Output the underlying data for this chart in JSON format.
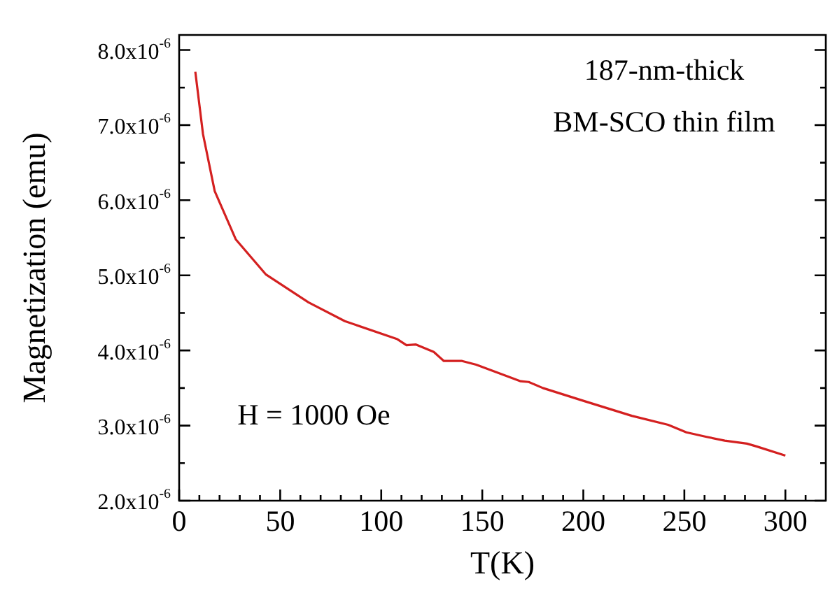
{
  "chart_data": {
    "type": "line",
    "xlabel": "T(K)",
    "ylabel": "Magnetization (emu)",
    "annotations": [
      "187-nm-thick",
      "BM-SCO thin film",
      "H = 1000 Oe"
    ],
    "x": [
      8,
      11.8,
      17.6,
      28,
      43,
      64,
      82,
      108,
      112.5,
      117,
      126,
      131,
      140,
      147,
      163,
      169,
      173,
      180,
      200,
      224,
      242,
      251,
      261,
      270,
      281,
      286,
      300
    ],
    "series": [
      {
        "color": "#d42020",
        "values": [
          7.71e-06,
          6.88e-06,
          6.12e-06,
          5.48e-06,
          5.01e-06,
          4.64e-06,
          4.39e-06,
          4.15e-06,
          4.07e-06,
          4.08e-06,
          3.98e-06,
          3.86e-06,
          3.86e-06,
          3.81e-06,
          3.65e-06,
          3.59e-06,
          3.58e-06,
          3.5e-06,
          3.33e-06,
          3.13e-06,
          3.01e-06,
          2.91e-06,
          2.85e-06,
          2.8e-06,
          2.76e-06,
          2.72e-06,
          2.6e-06
        ]
      }
    ],
    "xlim": [
      0,
      320
    ],
    "ylim": [
      2e-06,
      8.2e-06
    ],
    "xticks": [
      0,
      {
        "value": 10,
        "label": null
      },
      {
        "value": 20,
        "label": null
      },
      {
        "value": 30,
        "label": null
      },
      {
        "value": 40,
        "label": null
      },
      50,
      {
        "value": 60,
        "label": null
      },
      {
        "value": 70,
        "label": null
      },
      {
        "value": 80,
        "label": null
      },
      {
        "value": 90,
        "label": null
      },
      100,
      {
        "value": 110,
        "label": null
      },
      {
        "value": 120,
        "label": null
      },
      {
        "value": 130,
        "label": null
      },
      {
        "value": 140,
        "label": null
      },
      150,
      {
        "value": 160,
        "label": null
      },
      {
        "value": 170,
        "label": null
      },
      {
        "value": 180,
        "label": null
      },
      {
        "value": 190,
        "label": null
      },
      200,
      {
        "value": 210,
        "label": null
      },
      {
        "value": 220,
        "label": null
      },
      {
        "value": 230,
        "label": null
      },
      {
        "value": 240,
        "label": null
      },
      250,
      {
        "value": 260,
        "label": null
      },
      {
        "value": 270,
        "label": null
      },
      {
        "value": 280,
        "label": null
      },
      {
        "value": 290,
        "label": null
      },
      300,
      {
        "value": 310,
        "label": null
      }
    ],
    "yticks": [
      {
        "value": 2e-06,
        "label": "2.0x10$^{-6}$"
      },
      {
        "value": 2.5e-06,
        "label": null
      },
      {
        "value": 3e-06,
        "label": "3.0x10$^{-6}$"
      },
      {
        "value": 3.5e-06,
        "label": null
      },
      {
        "value": 4e-06,
        "label": "4.0x10$^{-6}$"
      },
      {
        "value": 4.5e-06,
        "label": null
      },
      {
        "value": 5e-06,
        "label": "5.0x10$^{-6}$"
      },
      {
        "value": 5.5e-06,
        "label": null
      },
      {
        "value": 6e-06,
        "label": "6.0x10$^{-6}$"
      },
      {
        "value": 6.5e-06,
        "label": null
      },
      {
        "value": 7e-06,
        "label": "7.0x10$^{-6}$"
      },
      {
        "value": 7.5e-06,
        "label": null
      },
      {
        "value": 8e-06,
        "label": "8.0x10$^{-6}$"
      }
    ],
    "grid": false,
    "legend": false,
    "marker": "none",
    "line_style": "solid"
  }
}
